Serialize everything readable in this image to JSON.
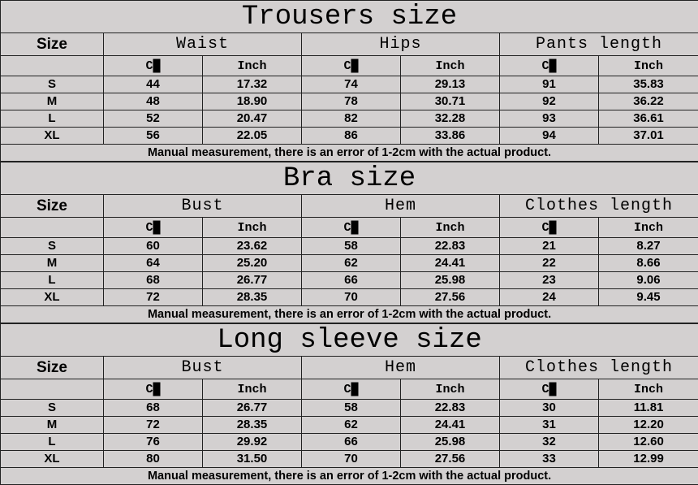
{
  "colors": {
    "background": "#d3d0d0",
    "border": "#222222",
    "text": "#000000"
  },
  "note": "Manual measurement, there is an error of 1-2cm with the actual product.",
  "size_label": "Size",
  "sections": [
    {
      "title": "Trousers size",
      "groups": [
        "Waist",
        "Hips",
        "Pants length"
      ],
      "units": [
        "C█",
        "Inch",
        "C█",
        "Inch",
        "C█",
        "Inch"
      ],
      "rows": [
        [
          "S",
          "44",
          "17.32",
          "74",
          "29.13",
          "91",
          "35.83"
        ],
        [
          "M",
          "48",
          "18.90",
          "78",
          "30.71",
          "92",
          "36.22"
        ],
        [
          "L",
          "52",
          "20.47",
          "82",
          "32.28",
          "93",
          "36.61"
        ],
        [
          "XL",
          "56",
          "22.05",
          "86",
          "33.86",
          "94",
          "37.01"
        ]
      ]
    },
    {
      "title": "Bra size",
      "groups": [
        "Bust",
        "Hem",
        "Clothes length"
      ],
      "units": [
        "C█",
        "Inch",
        "C█",
        "Inch",
        "C█",
        "Inch"
      ],
      "rows": [
        [
          "S",
          "60",
          "23.62",
          "58",
          "22.83",
          "21",
          "8.27"
        ],
        [
          "M",
          "64",
          "25.20",
          "62",
          "24.41",
          "22",
          "8.66"
        ],
        [
          "L",
          "68",
          "26.77",
          "66",
          "25.98",
          "23",
          "9.06"
        ],
        [
          "XL",
          "72",
          "28.35",
          "70",
          "27.56",
          "24",
          "9.45"
        ]
      ]
    },
    {
      "title": "Long sleeve size",
      "groups": [
        "Bust",
        "Hem",
        "Clothes length"
      ],
      "units": [
        "C█",
        "Inch",
        "C█",
        "Inch",
        "C█",
        "Inch"
      ],
      "rows": [
        [
          "S",
          "68",
          "26.77",
          "58",
          "22.83",
          "30",
          "11.81"
        ],
        [
          "M",
          "72",
          "28.35",
          "62",
          "24.41",
          "31",
          "12.20"
        ],
        [
          "L",
          "76",
          "29.92",
          "66",
          "25.98",
          "32",
          "12.60"
        ],
        [
          "XL",
          "80",
          "31.50",
          "70",
          "27.56",
          "33",
          "12.99"
        ]
      ]
    }
  ]
}
